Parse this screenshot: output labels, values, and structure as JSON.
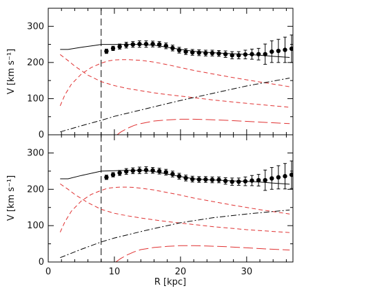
{
  "chart_data": [
    {
      "type": "line",
      "panel": "top",
      "xlabel": "",
      "ylabel": "V [km s⁻¹]",
      "xlim": [
        0,
        37
      ],
      "ylim": [
        0,
        350
      ],
      "yticks": [
        0,
        100,
        200,
        300
      ],
      "xticks": [
        0,
        10,
        20,
        30
      ],
      "xtick_labels": [
        "",
        "",
        "",
        ""
      ],
      "vline_x": 8,
      "observed": {
        "x": [
          8.8,
          9.8,
          10.8,
          11.8,
          12.8,
          13.8,
          14.8,
          15.8,
          16.8,
          17.8,
          18.8,
          19.8,
          20.8,
          21.8,
          22.8,
          23.8,
          24.8,
          25.8,
          26.8,
          27.8,
          28.8,
          29.8,
          30.8,
          31.8,
          32.8,
          33.8,
          34.8,
          35.8,
          36.8
        ],
        "y": [
          231,
          239,
          244,
          248,
          250,
          251,
          251,
          251,
          250,
          246,
          240,
          234,
          230,
          228,
          227,
          226,
          226,
          225,
          223,
          220,
          220,
          222,
          223,
          223,
          223,
          230,
          232,
          235,
          238
        ],
        "err": [
          6,
          6,
          7,
          8,
          8,
          9,
          9,
          8,
          8,
          8,
          8,
          8,
          8,
          8,
          8,
          8,
          8,
          8,
          9,
          10,
          10,
          12,
          14,
          16,
          28,
          30,
          32,
          35,
          38
        ]
      },
      "series": [
        {
          "style": "solid-black",
          "x": [
            1.8,
            3,
            5,
            7,
            8,
            10,
            12,
            14,
            16,
            18,
            20,
            22,
            24,
            26,
            28,
            30,
            32,
            34,
            36.5
          ],
          "y": [
            236,
            236,
            242,
            247,
            250,
            250,
            250,
            250,
            248,
            242,
            236,
            231,
            228,
            226,
            224,
            222,
            220,
            217,
            214
          ]
        },
        {
          "style": "dashed-red",
          "x": [
            1.8,
            3,
            4,
            6,
            8,
            10,
            12,
            14,
            16,
            18,
            20,
            25,
            30,
            36.5
          ],
          "y": [
            222,
            205,
            190,
            165,
            147,
            136,
            128,
            122,
            116,
            111,
            107,
            96,
            87,
            76
          ]
        },
        {
          "style": "dashed-red",
          "x": [
            1.8,
            2.5,
            3.5,
            5,
            6.5,
            8,
            9,
            10,
            11,
            12,
            13,
            14,
            16,
            18,
            20,
            22,
            25,
            28,
            32,
            36.5
          ],
          "y": [
            80,
            110,
            140,
            168,
            186,
            198,
            204,
            207,
            208,
            208,
            207,
            206,
            201,
            194,
            186,
            178,
            168,
            158,
            146,
            133
          ]
        },
        {
          "style": "dashdot-black",
          "x": [
            1.8,
            5,
            8,
            10,
            15,
            20,
            25,
            30,
            36.5
          ],
          "y": [
            8,
            25,
            40,
            51,
            73,
            95,
            115,
            135,
            157
          ]
        },
        {
          "style": "longdash-red",
          "x": [
            10.4,
            11,
            12,
            13,
            14,
            16,
            18,
            20,
            22,
            24,
            27,
            30,
            33,
            36.5
          ],
          "y": [
            0,
            8,
            18,
            26,
            31,
            38,
            41,
            43,
            43,
            42,
            40,
            37,
            34,
            31
          ]
        }
      ]
    },
    {
      "type": "line",
      "panel": "bottom",
      "xlabel": "R [kpc]",
      "ylabel": "V [km s⁻¹]",
      "xlim": [
        0,
        37
      ],
      "ylim": [
        0,
        350
      ],
      "yticks": [
        0,
        100,
        200,
        300
      ],
      "xticks": [
        0,
        10,
        20,
        30
      ],
      "xtick_labels": [
        "0",
        "10",
        "20",
        "30"
      ],
      "vline_x": 8,
      "observed": {
        "x": [
          8.8,
          9.8,
          10.8,
          11.8,
          12.8,
          13.8,
          14.8,
          15.8,
          16.8,
          17.8,
          18.8,
          19.8,
          20.8,
          21.8,
          22.8,
          23.8,
          24.8,
          25.8,
          26.8,
          27.8,
          28.8,
          29.8,
          30.8,
          31.8,
          32.8,
          33.8,
          34.8,
          35.8,
          36.8
        ],
        "y": [
          233,
          240,
          245,
          249,
          251,
          252,
          253,
          252,
          250,
          247,
          242,
          236,
          231,
          228,
          227,
          227,
          226,
          226,
          223,
          221,
          221,
          222,
          224,
          225,
          225,
          230,
          233,
          236,
          240
        ],
        "err": [
          6,
          6,
          7,
          8,
          8,
          9,
          9,
          8,
          8,
          8,
          8,
          8,
          8,
          8,
          8,
          8,
          8,
          8,
          9,
          10,
          10,
          12,
          14,
          16,
          28,
          30,
          32,
          35,
          38
        ]
      },
      "series": [
        {
          "style": "solid-black",
          "x": [
            1.8,
            3,
            5,
            7,
            8,
            10,
            12,
            14,
            16,
            18,
            20,
            22,
            24,
            26,
            28,
            30,
            32,
            34,
            36.5
          ],
          "y": [
            229,
            229,
            238,
            246,
            250,
            251,
            252,
            252,
            249,
            242,
            235,
            229,
            226,
            225,
            223,
            222,
            220,
            217,
            214
          ]
        },
        {
          "style": "dashed-red",
          "x": [
            1.8,
            3,
            4,
            6,
            8,
            10,
            12,
            14,
            16,
            18,
            20,
            25,
            30,
            36.5
          ],
          "y": [
            215,
            200,
            186,
            163,
            145,
            134,
            127,
            121,
            116,
            111,
            107,
            97,
            89,
            81
          ]
        },
        {
          "style": "dashed-red",
          "x": [
            1.8,
            2.5,
            3.5,
            5,
            6.5,
            8,
            9,
            10,
            11,
            12,
            13,
            14,
            16,
            18,
            20,
            22,
            25,
            28,
            32,
            36.5
          ],
          "y": [
            82,
            110,
            140,
            168,
            186,
            197,
            203,
            205,
            206,
            206,
            205,
            203,
            198,
            191,
            184,
            176,
            166,
            156,
            144,
            132
          ]
        },
        {
          "style": "dashdot-black",
          "x": [
            1.8,
            5,
            8,
            10,
            15,
            20,
            25,
            30,
            36.5
          ],
          "y": [
            12,
            35,
            55,
            66,
            88,
            108,
            122,
            132,
            143
          ]
        },
        {
          "style": "longdash-red",
          "x": [
            10.2,
            11,
            12,
            13,
            14,
            16,
            18,
            20,
            22,
            24,
            27,
            30,
            33,
            36.5
          ],
          "y": [
            0,
            10,
            20,
            28,
            34,
            40,
            43,
            45,
            45,
            44,
            42,
            39,
            36,
            33
          ]
        }
      ]
    }
  ]
}
